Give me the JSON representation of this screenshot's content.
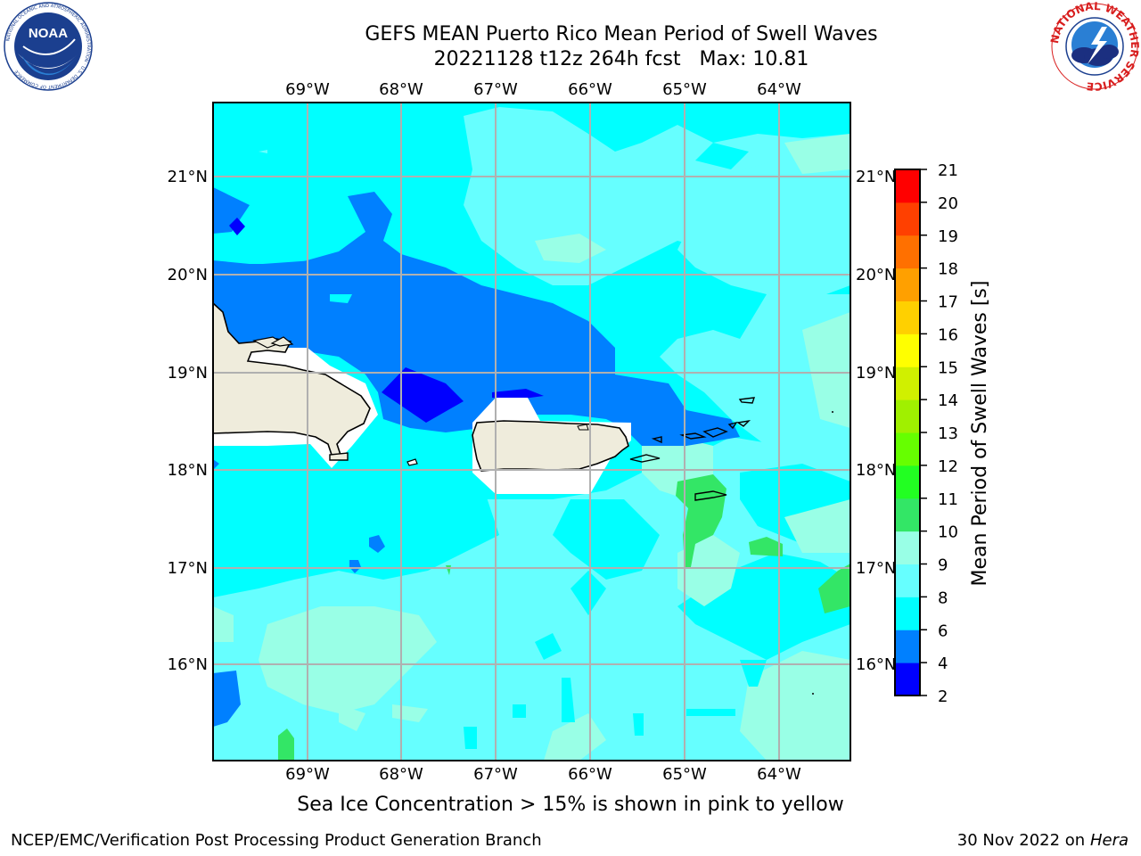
{
  "title": {
    "line1": "GEFS MEAN Puerto Rico Mean Period of Swell Waves",
    "line2": "20221128 t12z 264h fcst   Max: 10.81"
  },
  "logos": {
    "left": {
      "text": "NOAA",
      "ring_text": "NATIONAL OCEANIC AND ATMOSPHERIC ADMINISTRATION · U.S. DEPARTMENT OF COMMERCE",
      "icon": "noaa-logo"
    },
    "right": {
      "ring_text": "NATIONAL WEATHER SERVICE",
      "icon": "nws-logo"
    }
  },
  "map": {
    "lon_ticks": [
      "69°W",
      "68°W",
      "67°W",
      "66°W",
      "65°W",
      "64°W"
    ],
    "lat_ticks": [
      "21°N",
      "20°N",
      "19°N",
      "18°N",
      "17°N",
      "16°N"
    ],
    "lon_range": [
      -70.0,
      -63.25
    ],
    "lat_range": [
      15.0,
      21.75
    ],
    "gridlines": true,
    "land_color": "#efecdc",
    "ocean_base_color": "#00ffff"
  },
  "colorbar": {
    "label": "Mean Period of Swell Waves [s]",
    "ticks": [
      "2",
      "4",
      "6",
      "8",
      "9",
      "10",
      "11",
      "12",
      "13",
      "14",
      "15",
      "16",
      "17",
      "18",
      "19",
      "20",
      "21"
    ],
    "colors": [
      "#0000ff",
      "#0080ff",
      "#00ffff",
      "#66ffff",
      "#99ffe6",
      "#33e666",
      "#22ff22",
      "#66ff00",
      "#a0f000",
      "#d0f000",
      "#ffff00",
      "#ffd000",
      "#ffa000",
      "#ff7000",
      "#ff4000",
      "#ff0000"
    ]
  },
  "subtitle": "Sea Ice Concentration > 15% is shown in pink to yellow",
  "footer": {
    "left": "NCEP/EMC/Verification Post Processing Product Generation Branch",
    "right_date": "30 Nov 2022 on",
    "right_host": "Hera"
  }
}
